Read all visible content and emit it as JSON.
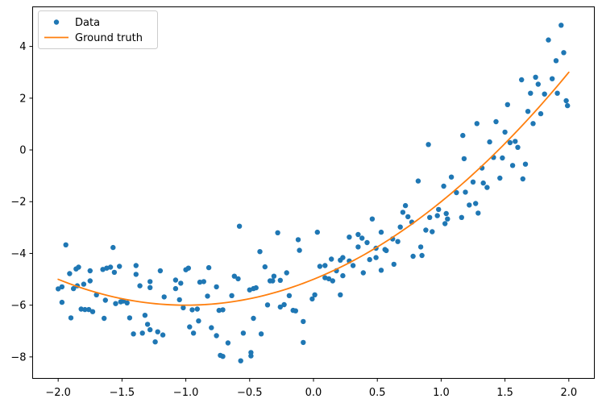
{
  "chart_data": {
    "type": "scatter",
    "title": "",
    "xlabel": "",
    "ylabel": "",
    "xlim": [
      -2.2,
      2.2
    ],
    "ylim": [
      -8.83,
      5.53
    ],
    "x_ticks": [
      -2.0,
      -1.5,
      -1.0,
      -0.5,
      0.0,
      0.5,
      1.0,
      1.5,
      2.0
    ],
    "x_tick_labels": [
      "−2.0",
      "−1.5",
      "−1.0",
      "−0.5",
      "0.0",
      "0.5",
      "1.0",
      "1.5",
      "2.0"
    ],
    "y_ticks": [
      -8,
      -6,
      -4,
      -2,
      0,
      2,
      4
    ],
    "y_tick_labels": [
      "−8",
      "−6",
      "−4",
      "−2",
      "0",
      "2",
      "4"
    ],
    "grid": false,
    "spine_color": "#000000",
    "legend": {
      "position": "upper left",
      "entries": [
        {
          "label": "Data",
          "type": "marker",
          "color": "#1f77b4"
        },
        {
          "label": "Ground truth",
          "type": "line",
          "color": "#ff7f0e"
        }
      ]
    },
    "series": [
      {
        "name": "Data",
        "type": "scatter",
        "color": "#1f77b4",
        "points": [
          [
            -2.0,
            -5.37
          ],
          [
            -1.97,
            -5.29
          ],
          [
            -1.97,
            -5.89
          ],
          [
            -1.94,
            -3.67
          ],
          [
            -1.91,
            -4.78
          ],
          [
            -1.9,
            -6.49
          ],
          [
            -1.88,
            -5.36
          ],
          [
            -1.86,
            -4.6
          ],
          [
            -1.85,
            -5.25
          ],
          [
            -1.84,
            -4.53
          ],
          [
            -1.82,
            -6.15
          ],
          [
            -1.8,
            -5.19
          ],
          [
            -1.79,
            -6.17
          ],
          [
            -1.76,
            -6.17
          ],
          [
            -1.75,
            -4.67
          ],
          [
            -1.75,
            -5.06
          ],
          [
            -1.73,
            -6.25
          ],
          [
            -1.7,
            -5.6
          ],
          [
            -1.65,
            -4.62
          ],
          [
            -1.64,
            -6.51
          ],
          [
            -1.63,
            -5.81
          ],
          [
            -1.62,
            -4.57
          ],
          [
            -1.59,
            -4.53
          ],
          [
            -1.57,
            -3.77
          ],
          [
            -1.56,
            -4.73
          ],
          [
            -1.55,
            -5.94
          ],
          [
            -1.52,
            -4.5
          ],
          [
            -1.51,
            -5.87
          ],
          [
            -1.49,
            -5.84
          ],
          [
            -1.46,
            -5.91
          ],
          [
            -1.44,
            -6.49
          ],
          [
            -1.41,
            -7.11
          ],
          [
            -1.39,
            -4.47
          ],
          [
            -1.39,
            -4.81
          ],
          [
            -1.36,
            -5.25
          ],
          [
            -1.34,
            -7.08
          ],
          [
            -1.32,
            -6.39
          ],
          [
            -1.3,
            -6.74
          ],
          [
            -1.28,
            -5.09
          ],
          [
            -1.28,
            -5.32
          ],
          [
            -1.28,
            -6.95
          ],
          [
            -1.24,
            -7.42
          ],
          [
            -1.22,
            -7.03
          ],
          [
            -1.2,
            -4.67
          ],
          [
            -1.18,
            -7.15
          ],
          [
            -1.17,
            -5.68
          ],
          [
            -1.08,
            -5.03
          ],
          [
            -1.08,
            -5.36
          ],
          [
            -1.05,
            -5.79
          ],
          [
            -1.04,
            -5.15
          ],
          [
            -1.02,
            -6.1
          ],
          [
            -1.0,
            -4.63
          ],
          [
            -0.98,
            -4.57
          ],
          [
            -0.97,
            -6.84
          ],
          [
            -0.95,
            -6.18
          ],
          [
            -0.94,
            -7.08
          ],
          [
            -0.91,
            -6.15
          ],
          [
            -0.9,
            -6.61
          ],
          [
            -0.89,
            -5.11
          ],
          [
            -0.86,
            -5.09
          ],
          [
            -0.83,
            -5.65
          ],
          [
            -0.82,
            -4.55
          ],
          [
            -0.8,
            -6.87
          ],
          [
            -0.76,
            -5.29
          ],
          [
            -0.76,
            -7.18
          ],
          [
            -0.74,
            -6.2
          ],
          [
            -0.73,
            -7.94
          ],
          [
            -0.71,
            -6.18
          ],
          [
            -0.71,
            -7.98
          ],
          [
            -0.67,
            -7.46
          ],
          [
            -0.64,
            -5.63
          ],
          [
            -0.62,
            -4.88
          ],
          [
            -0.59,
            -4.98
          ],
          [
            -0.58,
            -2.95
          ],
          [
            -0.57,
            -8.15
          ],
          [
            -0.55,
            -7.08
          ],
          [
            -0.5,
            -5.41
          ],
          [
            -0.49,
            -7.83
          ],
          [
            -0.49,
            -7.96
          ],
          [
            -0.47,
            -5.36
          ],
          [
            -0.47,
            -6.51
          ],
          [
            -0.45,
            -5.33
          ],
          [
            -0.42,
            -3.93
          ],
          [
            -0.41,
            -7.11
          ],
          [
            -0.38,
            -4.52
          ],
          [
            -0.36,
            -5.99
          ],
          [
            -0.34,
            -5.06
          ],
          [
            -0.32,
            -5.06
          ],
          [
            -0.31,
            -4.88
          ],
          [
            -0.28,
            -3.2
          ],
          [
            -0.26,
            -5.04
          ],
          [
            -0.26,
            -6.07
          ],
          [
            -0.23,
            -5.98
          ],
          [
            -0.21,
            -4.75
          ],
          [
            -0.19,
            -5.63
          ],
          [
            -0.16,
            -6.2
          ],
          [
            -0.14,
            -6.22
          ],
          [
            -0.12,
            -3.47
          ],
          [
            -0.11,
            -3.88
          ],
          [
            -0.08,
            -6.63
          ],
          [
            -0.08,
            -7.44
          ],
          [
            -0.01,
            -5.76
          ],
          [
            0.01,
            -5.6
          ],
          [
            0.03,
            -3.18
          ],
          [
            0.05,
            -4.5
          ],
          [
            0.09,
            -4.47
          ],
          [
            0.09,
            -4.94
          ],
          [
            0.12,
            -4.98
          ],
          [
            0.14,
            -4.22
          ],
          [
            0.15,
            -5.06
          ],
          [
            0.18,
            -4.67
          ],
          [
            0.21,
            -4.26
          ],
          [
            0.21,
            -5.6
          ],
          [
            0.23,
            -4.16
          ],
          [
            0.23,
            -4.86
          ],
          [
            0.28,
            -3.37
          ],
          [
            0.28,
            -4.29
          ],
          [
            0.31,
            -4.47
          ],
          [
            0.35,
            -3.27
          ],
          [
            0.35,
            -3.75
          ],
          [
            0.38,
            -3.41
          ],
          [
            0.39,
            -4.75
          ],
          [
            0.42,
            -3.58
          ],
          [
            0.44,
            -4.24
          ],
          [
            0.46,
            -2.67
          ],
          [
            0.49,
            -3.8
          ],
          [
            0.49,
            -4.16
          ],
          [
            0.53,
            -3.18
          ],
          [
            0.53,
            -4.65
          ],
          [
            0.56,
            -3.85
          ],
          [
            0.57,
            -3.89
          ],
          [
            0.62,
            -3.44
          ],
          [
            0.63,
            -4.42
          ],
          [
            0.66,
            -3.54
          ],
          [
            0.68,
            -2.98
          ],
          [
            0.7,
            -2.41
          ],
          [
            0.72,
            -2.15
          ],
          [
            0.74,
            -2.58
          ],
          [
            0.77,
            -2.79
          ],
          [
            0.78,
            -4.11
          ],
          [
            0.82,
            -1.2
          ],
          [
            0.84,
            -3.75
          ],
          [
            0.85,
            -4.08
          ],
          [
            0.88,
            -3.1
          ],
          [
            0.9,
            0.21
          ],
          [
            0.91,
            -2.61
          ],
          [
            0.93,
            -3.16
          ],
          [
            0.97,
            -2.54
          ],
          [
            0.98,
            -2.3
          ],
          [
            1.02,
            -1.4
          ],
          [
            1.03,
            -2.85
          ],
          [
            1.04,
            -2.46
          ],
          [
            1.05,
            -2.67
          ],
          [
            1.08,
            -1.05
          ],
          [
            1.12,
            -1.65
          ],
          [
            1.16,
            -2.61
          ],
          [
            1.17,
            0.56
          ],
          [
            1.18,
            -0.34
          ],
          [
            1.19,
            -1.63
          ],
          [
            1.22,
            -2.13
          ],
          [
            1.25,
            -1.24
          ],
          [
            1.27,
            -2.07
          ],
          [
            1.28,
            1.02
          ],
          [
            1.29,
            -2.44
          ],
          [
            1.32,
            -0.7
          ],
          [
            1.33,
            -1.28
          ],
          [
            1.36,
            -1.45
          ],
          [
            1.38,
            0.31
          ],
          [
            1.41,
            -0.29
          ],
          [
            1.43,
            1.09
          ],
          [
            1.46,
            -1.09
          ],
          [
            1.48,
            -0.31
          ],
          [
            1.5,
            0.69
          ],
          [
            1.52,
            1.75
          ],
          [
            1.54,
            0.28
          ],
          [
            1.56,
            -0.6
          ],
          [
            1.58,
            0.33
          ],
          [
            1.6,
            0.1
          ],
          [
            1.63,
            2.71
          ],
          [
            1.64,
            -1.12
          ],
          [
            1.66,
            -0.55
          ],
          [
            1.68,
            1.49
          ],
          [
            1.7,
            2.19
          ],
          [
            1.72,
            1.02
          ],
          [
            1.74,
            2.81
          ],
          [
            1.76,
            2.54
          ],
          [
            1.78,
            1.4
          ],
          [
            1.81,
            2.16
          ],
          [
            1.84,
            4.25
          ],
          [
            1.87,
            2.75
          ],
          [
            1.9,
            3.45
          ],
          [
            1.91,
            2.19
          ],
          [
            1.94,
            4.82
          ],
          [
            1.96,
            3.76
          ],
          [
            1.98,
            1.9
          ],
          [
            1.99,
            1.71
          ]
        ]
      },
      {
        "name": "Ground truth",
        "type": "line",
        "color": "#ff7f0e",
        "formula": "y = x^2 + 2x - 5",
        "coefficients": {
          "a": 1,
          "b": 2,
          "c": -5
        },
        "x_range": [
          -2,
          2
        ]
      }
    ]
  }
}
